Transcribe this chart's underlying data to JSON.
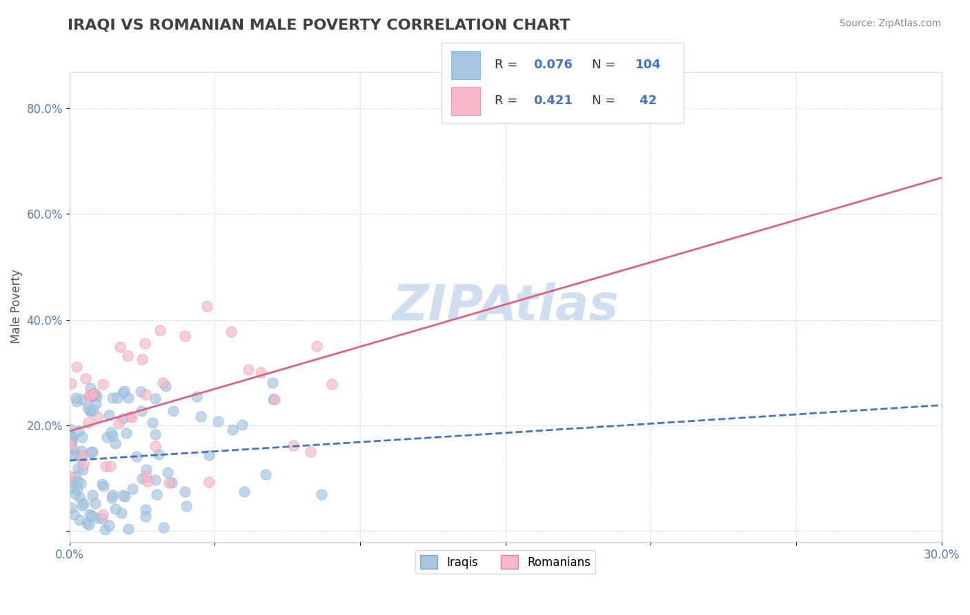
{
  "title": "IRAQI VS ROMANIAN MALE POVERTY CORRELATION CHART",
  "source_text": "Source: ZipAtlas.com",
  "ylabel": "Male Poverty",
  "xlim": [
    0.0,
    0.3
  ],
  "ylim": [
    -0.02,
    0.87
  ],
  "xticks": [
    0.0,
    0.05,
    0.1,
    0.15,
    0.2,
    0.25,
    0.3
  ],
  "xticklabels": [
    "0.0%",
    "",
    "",
    "",
    "",
    "",
    "30.0%"
  ],
  "yticks": [
    0.0,
    0.2,
    0.4,
    0.6,
    0.8
  ],
  "yticklabels": [
    "",
    "20.0%",
    "40.0%",
    "60.0%",
    "80.0%"
  ],
  "iraqis_R": 0.076,
  "iraqis_N": 104,
  "romanians_R": 0.421,
  "romanians_N": 42,
  "blue_color": "#a8c4e0",
  "blue_edge": "#6aaed6",
  "pink_color": "#f4b8c8",
  "pink_edge": "#e87fa0",
  "blue_line_color": "#4472c4",
  "pink_line_color": "#e06080",
  "watermark_color": "#d0dff0",
  "background_color": "#ffffff",
  "grid_color": "#c8d8e8",
  "title_color": "#404040",
  "legend_text_color": "#4472c4",
  "tick_color": "#5a7aaa"
}
